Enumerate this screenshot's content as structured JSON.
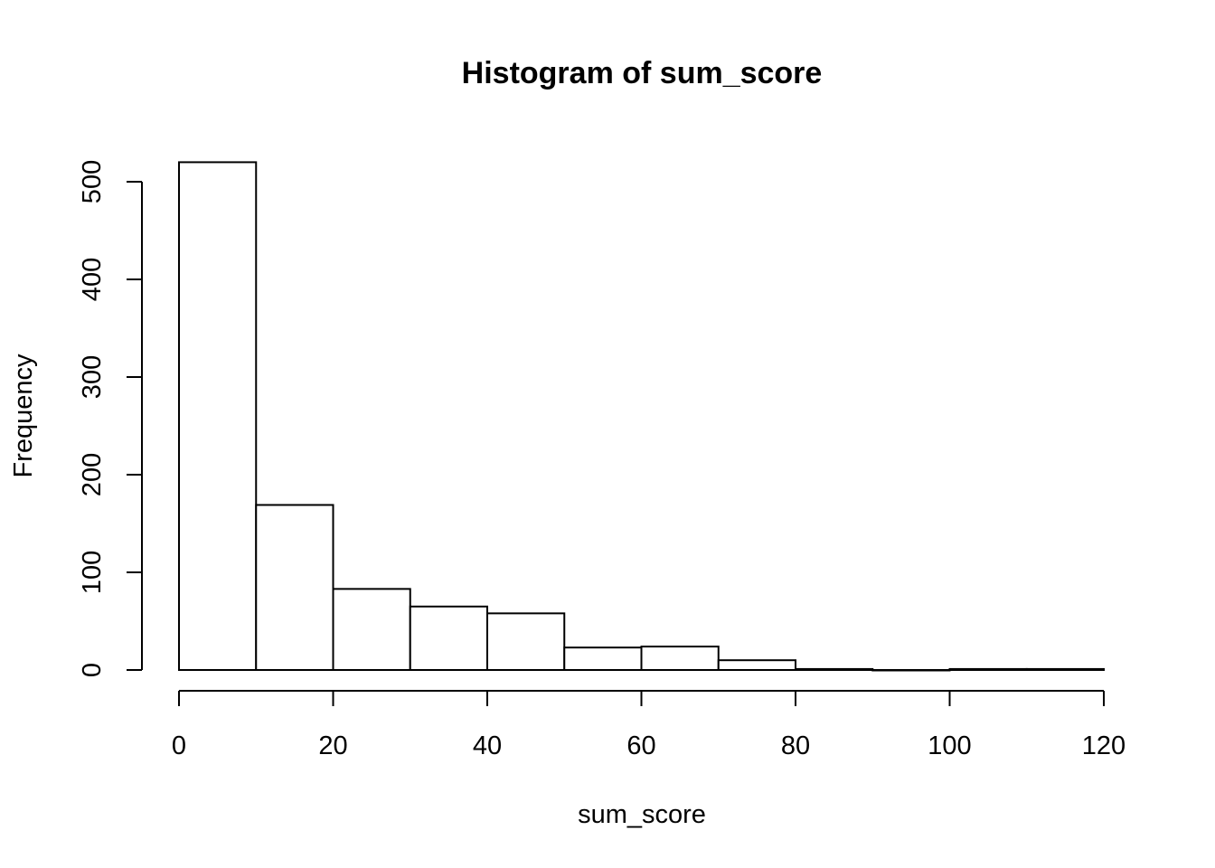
{
  "chart_data": {
    "type": "bar",
    "title": "Histogram of sum_score",
    "xlabel": "sum_score",
    "ylabel": "Frequency",
    "bins": [
      {
        "from": 0,
        "to": 10,
        "count": 520
      },
      {
        "from": 10,
        "to": 20,
        "count": 169
      },
      {
        "from": 20,
        "to": 30,
        "count": 83
      },
      {
        "from": 30,
        "to": 40,
        "count": 65
      },
      {
        "from": 40,
        "to": 50,
        "count": 58
      },
      {
        "from": 50,
        "to": 60,
        "count": 23
      },
      {
        "from": 60,
        "to": 70,
        "count": 24
      },
      {
        "from": 70,
        "to": 80,
        "count": 10
      },
      {
        "from": 80,
        "to": 90,
        "count": 1
      },
      {
        "from": 90,
        "to": 100,
        "count": 0
      },
      {
        "from": 100,
        "to": 110,
        "count": 1
      },
      {
        "from": 110,
        "to": 120,
        "count": 1
      }
    ],
    "xlim": [
      0,
      120
    ],
    "ylim": [
      0,
      520
    ],
    "x_ticks": [
      0,
      20,
      40,
      60,
      80,
      100,
      120
    ],
    "y_ticks": [
      0,
      100,
      200,
      300,
      400,
      500
    ],
    "grid": false,
    "bar_fill": "#ffffff",
    "bar_stroke": "#000000"
  }
}
